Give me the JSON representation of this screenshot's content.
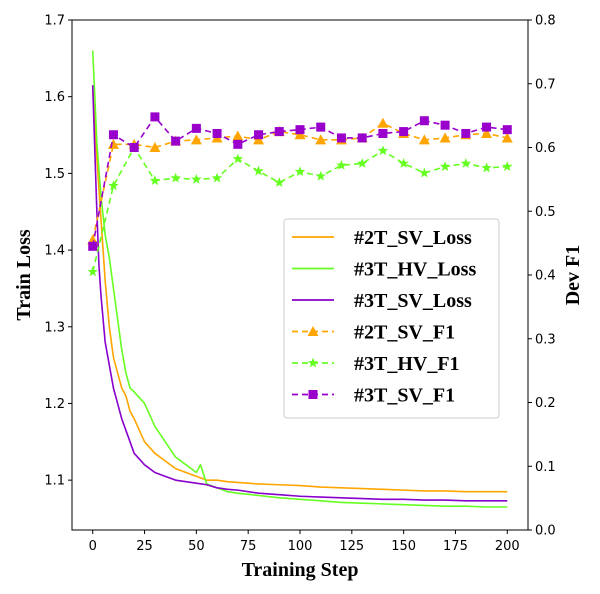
{
  "chart_data": {
    "type": "line",
    "title": "",
    "xlabel": "Training Step",
    "ylabel_left": "Train Loss",
    "ylabel_right": "Dev F1",
    "xlim": [
      -10,
      210
    ],
    "ylim_left": [
      1.035,
      1.7
    ],
    "ylim_right": [
      0.0,
      0.8
    ],
    "x_ticks": [
      0,
      25,
      50,
      75,
      100,
      125,
      150,
      175,
      200
    ],
    "y_ticks_left": [
      1.1,
      1.2,
      1.3,
      1.4,
      1.5,
      1.6,
      1.7
    ],
    "y_ticks_right": [
      0.0,
      0.1,
      0.2,
      0.3,
      0.4,
      0.5,
      0.6,
      0.7,
      0.8
    ],
    "grid": false,
    "legend_position": "center-right",
    "series": [
      {
        "name": "#2T_SV_Loss",
        "axis": "left",
        "style": "solid",
        "marker": "none",
        "color": "#FFA500",
        "x": [
          0,
          2,
          4,
          6,
          8,
          10,
          12,
          14,
          16,
          18,
          20,
          25,
          30,
          35,
          40,
          45,
          50,
          55,
          60,
          65,
          70,
          80,
          90,
          100,
          110,
          120,
          130,
          140,
          150,
          160,
          170,
          180,
          190,
          200
        ],
        "y": [
          1.61,
          1.52,
          1.44,
          1.36,
          1.3,
          1.26,
          1.24,
          1.22,
          1.21,
          1.19,
          1.18,
          1.15,
          1.135,
          1.125,
          1.115,
          1.11,
          1.105,
          1.1,
          1.1,
          1.098,
          1.097,
          1.095,
          1.094,
          1.093,
          1.091,
          1.09,
          1.089,
          1.088,
          1.087,
          1.086,
          1.086,
          1.085,
          1.085,
          1.085
        ]
      },
      {
        "name": "#3T_HV_Loss",
        "axis": "left",
        "style": "solid",
        "marker": "none",
        "color": "#66FF22",
        "x": [
          0,
          2,
          4,
          6,
          8,
          10,
          12,
          14,
          16,
          18,
          20,
          25,
          30,
          35,
          40,
          45,
          50,
          52,
          55,
          60,
          65,
          70,
          80,
          90,
          100,
          110,
          120,
          130,
          140,
          150,
          160,
          170,
          180,
          190,
          200
        ],
        "y": [
          1.66,
          1.54,
          1.47,
          1.42,
          1.39,
          1.35,
          1.31,
          1.27,
          1.24,
          1.22,
          1.215,
          1.2,
          1.17,
          1.15,
          1.13,
          1.12,
          1.11,
          1.12,
          1.095,
          1.09,
          1.085,
          1.083,
          1.08,
          1.077,
          1.075,
          1.073,
          1.071,
          1.07,
          1.069,
          1.068,
          1.067,
          1.066,
          1.066,
          1.065,
          1.065
        ]
      },
      {
        "name": "#3T_SV_Loss",
        "axis": "left",
        "style": "solid",
        "marker": "none",
        "color": "#8800CC",
        "x": [
          0,
          1,
          2,
          3,
          4,
          6,
          8,
          10,
          12,
          14,
          16,
          18,
          20,
          25,
          30,
          35,
          40,
          45,
          50,
          55,
          60,
          65,
          70,
          80,
          90,
          100,
          110,
          120,
          130,
          140,
          150,
          160,
          170,
          180,
          190,
          200
        ],
        "y": [
          1.615,
          1.53,
          1.45,
          1.38,
          1.34,
          1.28,
          1.25,
          1.22,
          1.2,
          1.18,
          1.165,
          1.15,
          1.135,
          1.12,
          1.11,
          1.105,
          1.1,
          1.098,
          1.096,
          1.094,
          1.09,
          1.088,
          1.087,
          1.083,
          1.081,
          1.079,
          1.078,
          1.077,
          1.076,
          1.075,
          1.075,
          1.074,
          1.074,
          1.073,
          1.073,
          1.073
        ]
      },
      {
        "name": "#2T_SV_F1",
        "axis": "right",
        "style": "dashed",
        "marker": "triangle",
        "color": "#FFA500",
        "x": [
          0,
          10,
          20,
          30,
          40,
          50,
          60,
          70,
          80,
          90,
          100,
          110,
          120,
          130,
          140,
          150,
          160,
          170,
          180,
          190,
          200
        ],
        "y": [
          0.455,
          0.605,
          0.605,
          0.6,
          0.61,
          0.612,
          0.615,
          0.618,
          0.612,
          0.625,
          0.62,
          0.612,
          0.612,
          0.615,
          0.638,
          0.622,
          0.612,
          0.615,
          0.62,
          0.622,
          0.615
        ]
      },
      {
        "name": "#3T_HV_F1",
        "axis": "right",
        "style": "dashed",
        "marker": "star",
        "color": "#66FF22",
        "x": [
          0,
          10,
          20,
          30,
          40,
          50,
          60,
          70,
          80,
          90,
          100,
          110,
          120,
          130,
          140,
          150,
          160,
          170,
          180,
          190,
          200
        ],
        "y": [
          0.405,
          0.54,
          0.6,
          0.548,
          0.552,
          0.55,
          0.552,
          0.582,
          0.563,
          0.545,
          0.562,
          0.555,
          0.572,
          0.575,
          0.595,
          0.575,
          0.56,
          0.57,
          0.575,
          0.568,
          0.57
        ]
      },
      {
        "name": "#3T_SV_F1",
        "axis": "right",
        "style": "dashed",
        "marker": "square",
        "color": "#9900CC",
        "x": [
          0,
          10,
          20,
          30,
          40,
          50,
          60,
          70,
          80,
          90,
          100,
          110,
          120,
          130,
          140,
          150,
          160,
          170,
          180,
          190,
          200
        ],
        "y": [
          0.445,
          0.62,
          0.6,
          0.648,
          0.61,
          0.63,
          0.622,
          0.605,
          0.62,
          0.625,
          0.628,
          0.632,
          0.615,
          0.615,
          0.622,
          0.625,
          0.642,
          0.635,
          0.622,
          0.632,
          0.628
        ]
      }
    ]
  }
}
